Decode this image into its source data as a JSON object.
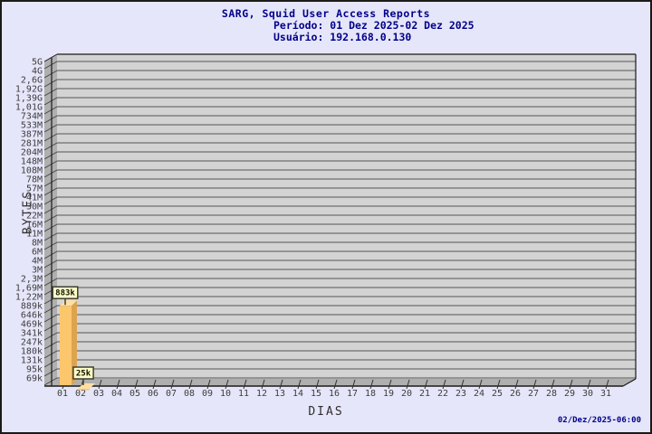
{
  "header": {
    "title": "SARG, Squid User Access Reports",
    "period_line": "Período: 01 Dez 2025-02 Dez 2025",
    "user_line": "Usuário: 192.168.0.130"
  },
  "footer": {
    "timestamp": "02/Dez/2025-06:00"
  },
  "colors": {
    "page_bg": "#E6E6FA",
    "frame_border": "#1a1a1a",
    "title_text": "#00008B",
    "axis_text": "#3c3c3c",
    "plot_bg": "#D3D3D3",
    "wall": "#AFAFAF",
    "gridline": "#555555",
    "edge": "#1a1a1a",
    "bar_front": "#FCC76C",
    "bar_top": "#FEDFA3",
    "bar_side": "#DCA44E",
    "value_box_bg": "#FFFFC8",
    "value_box_border": "#3e3e30",
    "value_box_text": "#101000"
  },
  "chart_data": {
    "type": "bar",
    "title": "SARG, Squid User Access Reports",
    "subtitle": "Período: 01 Dez 2025-02 Dez 2025 / Usuário: 192.168.0.130",
    "xlabel": "DIAS",
    "ylabel": "BYTES",
    "y_scale": "log",
    "grid": true,
    "legend": "none",
    "y_ticks": [
      {
        "label": "5G",
        "value": 5000000000
      },
      {
        "label": "4G",
        "value": 4000000000
      },
      {
        "label": "2,6G",
        "value": 2600000000
      },
      {
        "label": "1,92G",
        "value": 1920000000
      },
      {
        "label": "1,39G",
        "value": 1390000000
      },
      {
        "label": "1,01G",
        "value": 1010000000
      },
      {
        "label": "734M",
        "value": 734000000
      },
      {
        "label": "533M",
        "value": 533000000
      },
      {
        "label": "387M",
        "value": 387000000
      },
      {
        "label": "281M",
        "value": 281000000
      },
      {
        "label": "204M",
        "value": 204000000
      },
      {
        "label": "148M",
        "value": 148000000
      },
      {
        "label": "108M",
        "value": 108000000
      },
      {
        "label": "78M",
        "value": 78000000
      },
      {
        "label": "57M",
        "value": 57000000
      },
      {
        "label": "41M",
        "value": 41000000
      },
      {
        "label": "30M",
        "value": 30000000
      },
      {
        "label": "22M",
        "value": 22000000
      },
      {
        "label": "16M",
        "value": 16000000
      },
      {
        "label": "11M",
        "value": 11000000
      },
      {
        "label": "8M",
        "value": 8000000
      },
      {
        "label": "6M",
        "value": 6000000
      },
      {
        "label": "4M",
        "value": 4000000
      },
      {
        "label": "3M",
        "value": 3000000
      },
      {
        "label": "2,3M",
        "value": 2300000
      },
      {
        "label": "1,69M",
        "value": 1690000
      },
      {
        "label": "1,22M",
        "value": 1220000
      },
      {
        "label": "889k",
        "value": 889000
      },
      {
        "label": "646k",
        "value": 646000
      },
      {
        "label": "469k",
        "value": 469000
      },
      {
        "label": "341k",
        "value": 341000
      },
      {
        "label": "247k",
        "value": 247000
      },
      {
        "label": "180k",
        "value": 180000
      },
      {
        "label": "131k",
        "value": 131000
      },
      {
        "label": "95k",
        "value": 95000
      },
      {
        "label": "69k",
        "value": 69000
      }
    ],
    "categories": [
      "01",
      "02",
      "03",
      "04",
      "05",
      "06",
      "07",
      "08",
      "09",
      "10",
      "11",
      "12",
      "13",
      "14",
      "15",
      "16",
      "17",
      "18",
      "19",
      "20",
      "21",
      "22",
      "23",
      "24",
      "25",
      "26",
      "27",
      "28",
      "29",
      "30",
      "31"
    ],
    "bars": [
      {
        "category": "01",
        "value": 883000,
        "label": "883k"
      },
      {
        "category": "02",
        "value": 25000,
        "label": "25k"
      }
    ]
  }
}
